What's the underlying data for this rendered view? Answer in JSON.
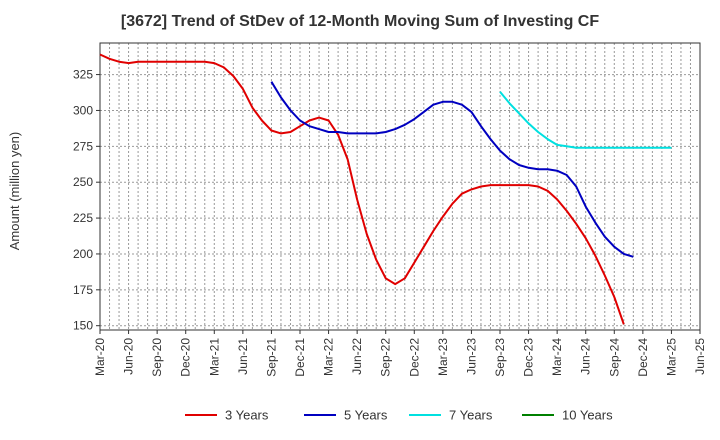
{
  "chart_data": {
    "type": "line",
    "title": "[3672]  Trend of StDev of 12-Month Moving Sum of Investing CF",
    "ylabel": "Amount (million yen)",
    "xlabel": "",
    "ylim": [
      147,
      347
    ],
    "yticks": [
      150,
      175,
      200,
      225,
      250,
      275,
      300,
      325
    ],
    "xtick_labels": [
      "Mar-20",
      "Jun-20",
      "Sep-20",
      "Dec-20",
      "Mar-21",
      "Jun-21",
      "Sep-21",
      "Dec-21",
      "Mar-22",
      "Jun-22",
      "Sep-22",
      "Dec-22",
      "Mar-23",
      "Jun-23",
      "Sep-23",
      "Dec-23",
      "Mar-24",
      "Jun-24",
      "Sep-24",
      "Dec-24",
      "Mar-25",
      "Jun-25"
    ],
    "x_months": [
      "2020-03",
      "2020-04",
      "2020-05",
      "2020-06",
      "2020-07",
      "2020-08",
      "2020-09",
      "2020-10",
      "2020-11",
      "2020-12",
      "2021-01",
      "2021-02",
      "2021-03",
      "2021-04",
      "2021-05",
      "2021-06",
      "2021-07",
      "2021-08",
      "2021-09",
      "2021-10",
      "2021-11",
      "2021-12",
      "2022-01",
      "2022-02",
      "2022-03",
      "2022-04",
      "2022-05",
      "2022-06",
      "2022-07",
      "2022-08",
      "2022-09",
      "2022-10",
      "2022-11",
      "2022-12",
      "2023-01",
      "2023-02",
      "2023-03",
      "2023-04",
      "2023-05",
      "2023-06",
      "2023-07",
      "2023-08",
      "2023-09",
      "2023-10",
      "2023-11",
      "2023-12",
      "2024-01",
      "2024-02",
      "2024-03",
      "2024-04",
      "2024-05",
      "2024-06",
      "2024-07",
      "2024-08",
      "2024-09",
      "2024-10",
      "2024-11",
      "2024-12",
      "2025-01",
      "2025-02",
      "2025-03",
      "2025-04",
      "2025-05",
      "2025-06"
    ],
    "grid": true,
    "legend_position": "bottom",
    "series": [
      {
        "name": "3 Years",
        "color": "#e00000",
        "values": [
          339,
          336,
          334,
          333,
          334,
          334,
          334,
          334,
          334,
          334,
          334,
          334,
          333,
          330,
          324,
          315,
          302,
          293,
          286,
          284,
          285,
          289,
          293,
          295,
          293,
          283,
          266,
          238,
          214,
          196,
          183,
          179,
          183,
          194,
          205,
          216,
          226,
          235,
          242,
          245,
          247,
          248,
          248,
          248,
          248,
          248,
          247,
          244,
          238,
          230,
          221,
          211,
          199,
          185,
          170,
          151,
          null,
          null,
          null,
          null,
          null,
          null,
          null,
          null
        ]
      },
      {
        "name": "5 Years",
        "color": "#0000c0",
        "values": [
          null,
          null,
          null,
          null,
          null,
          null,
          null,
          null,
          null,
          null,
          null,
          null,
          null,
          null,
          null,
          null,
          null,
          null,
          320,
          309,
          300,
          293,
          289,
          287,
          285,
          285,
          284,
          284,
          284,
          284,
          285,
          287,
          290,
          294,
          299,
          304,
          306,
          306,
          304,
          299,
          289,
          280,
          272,
          266,
          262,
          260,
          259,
          259,
          258,
          255,
          247,
          233,
          222,
          212,
          205,
          200,
          198,
          null,
          null,
          null,
          null,
          null,
          null,
          null
        ]
      },
      {
        "name": "7 Years",
        "color": "#00e0e0",
        "values": [
          null,
          null,
          null,
          null,
          null,
          null,
          null,
          null,
          null,
          null,
          null,
          null,
          null,
          null,
          null,
          null,
          null,
          null,
          null,
          null,
          null,
          null,
          null,
          null,
          null,
          null,
          null,
          null,
          null,
          null,
          null,
          null,
          null,
          null,
          null,
          null,
          null,
          null,
          null,
          null,
          null,
          null,
          313,
          305,
          298,
          291,
          285,
          280,
          276,
          275,
          274,
          274,
          274,
          274,
          274,
          274,
          274,
          274,
          274,
          274,
          274,
          null,
          null,
          null
        ]
      },
      {
        "name": "10 Years",
        "color": "#008000",
        "values": []
      }
    ]
  }
}
